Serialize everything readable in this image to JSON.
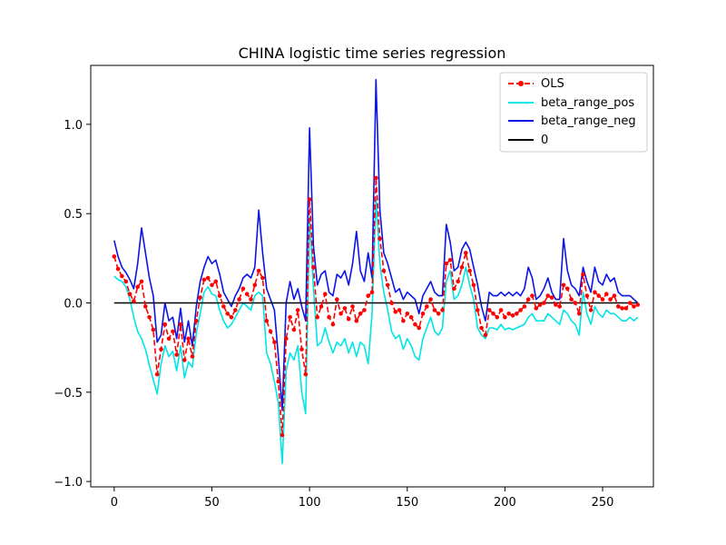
{
  "chart_data": {
    "type": "line",
    "title": "CHINA logistic time series regression",
    "xlabel": "",
    "ylabel": "",
    "xlim": [
      -12,
      276
    ],
    "ylim": [
      -1.03,
      1.33
    ],
    "x_ticks": [
      0,
      50,
      100,
      150,
      200,
      250
    ],
    "y_ticks": [
      -1.0,
      -0.5,
      0.0,
      0.5,
      1.0
    ],
    "x_tick_labels": [
      "0",
      "50",
      "100",
      "150",
      "200",
      "250"
    ],
    "y_tick_labels": [
      "−1.0",
      "−0.5",
      "0.0",
      "0.5",
      "1.0"
    ],
    "legend_position": "top-right",
    "series": [
      {
        "name": "OLS",
        "color": "#ff0000",
        "style": "dashed-markers",
        "x": [
          0,
          2,
          4,
          6,
          8,
          10,
          12,
          14,
          16,
          18,
          20,
          22,
          24,
          26,
          28,
          30,
          32,
          34,
          36,
          38,
          40,
          42,
          44,
          46,
          48,
          50,
          52,
          54,
          56,
          58,
          60,
          62,
          64,
          66,
          68,
          70,
          72,
          74,
          76,
          78,
          80,
          82,
          84,
          86,
          88,
          90,
          92,
          94,
          96,
          98,
          100,
          102,
          104,
          106,
          108,
          110,
          112,
          114,
          116,
          118,
          120,
          122,
          124,
          126,
          128,
          130,
          132,
          134,
          136,
          138,
          140,
          142,
          144,
          146,
          148,
          150,
          152,
          154,
          156,
          158,
          160,
          162,
          164,
          166,
          168,
          170,
          172,
          174,
          176,
          178,
          180,
          182,
          184,
          186,
          188,
          190,
          192,
          194,
          196,
          198,
          200,
          202,
          204,
          206,
          208,
          210,
          212,
          214,
          216,
          218,
          220,
          222,
          224,
          226,
          228,
          230,
          232,
          234,
          236,
          238,
          240,
          242,
          244,
          246,
          248,
          250,
          252,
          254,
          256,
          258,
          260,
          262,
          264,
          266,
          268
        ],
        "values": [
          0.26,
          0.19,
          0.15,
          0.12,
          0.05,
          0.01,
          0.09,
          0.12,
          -0.02,
          -0.08,
          -0.15,
          -0.4,
          -0.26,
          -0.12,
          -0.2,
          -0.16,
          -0.29,
          -0.12,
          -0.32,
          -0.2,
          -0.3,
          -0.1,
          0.03,
          0.13,
          0.14,
          0.1,
          0.12,
          0.04,
          -0.02,
          -0.06,
          -0.08,
          -0.04,
          0.02,
          0.08,
          0.05,
          0.02,
          0.1,
          0.18,
          0.14,
          -0.1,
          -0.16,
          -0.22,
          -0.44,
          -0.74,
          -0.2,
          -0.08,
          -0.15,
          -0.04,
          -0.26,
          -0.4,
          0.58,
          0.2,
          -0.08,
          -0.02,
          0.05,
          -0.08,
          -0.12,
          0.02,
          -0.06,
          -0.03,
          -0.09,
          -0.02,
          -0.1,
          -0.06,
          -0.04,
          0.04,
          0.06,
          0.7,
          0.36,
          0.18,
          0.1,
          0.0,
          -0.05,
          -0.04,
          -0.1,
          -0.06,
          -0.08,
          -0.12,
          -0.14,
          -0.06,
          -0.02,
          0.02,
          -0.04,
          -0.06,
          -0.04,
          0.22,
          0.24,
          0.08,
          0.12,
          0.2,
          0.28,
          0.18,
          0.1,
          -0.04,
          -0.14,
          -0.18,
          -0.04,
          -0.06,
          -0.08,
          -0.04,
          -0.08,
          -0.06,
          -0.07,
          -0.06,
          -0.04,
          -0.02,
          0.02,
          0.04,
          -0.03,
          -0.01,
          0.0,
          0.04,
          0.03,
          -0.01,
          -0.02,
          0.1,
          0.08,
          0.02,
          0.0,
          -0.06,
          0.16,
          0.04,
          -0.04,
          0.06,
          0.04,
          0.02,
          0.05,
          0.02,
          0.04,
          -0.02,
          -0.03,
          -0.03,
          0.0,
          -0.02,
          -0.01
        ]
      },
      {
        "name": "beta_range_pos",
        "color": "#00e6e6",
        "style": "solid",
        "x": [
          0,
          2,
          4,
          6,
          8,
          10,
          12,
          14,
          16,
          18,
          20,
          22,
          24,
          26,
          28,
          30,
          32,
          34,
          36,
          38,
          40,
          42,
          44,
          46,
          48,
          50,
          52,
          54,
          56,
          58,
          60,
          62,
          64,
          66,
          68,
          70,
          72,
          74,
          76,
          78,
          80,
          82,
          84,
          86,
          88,
          90,
          92,
          94,
          96,
          98,
          100,
          102,
          104,
          106,
          108,
          110,
          112,
          114,
          116,
          118,
          120,
          122,
          124,
          126,
          128,
          130,
          132,
          134,
          136,
          138,
          140,
          142,
          144,
          146,
          148,
          150,
          152,
          154,
          156,
          158,
          160,
          162,
          164,
          166,
          168,
          170,
          172,
          174,
          176,
          178,
          180,
          182,
          184,
          186,
          188,
          190,
          192,
          194,
          196,
          198,
          200,
          202,
          204,
          206,
          208,
          210,
          212,
          214,
          216,
          218,
          220,
          222,
          224,
          226,
          228,
          230,
          232,
          234,
          236,
          238,
          240,
          242,
          244,
          246,
          248,
          250,
          252,
          254,
          256,
          258,
          260,
          262,
          264,
          266,
          268
        ],
        "values": [
          0.15,
          0.13,
          0.12,
          0.09,
          0.02,
          -0.08,
          -0.16,
          -0.2,
          -0.26,
          -0.35,
          -0.43,
          -0.51,
          -0.34,
          -0.24,
          -0.3,
          -0.27,
          -0.38,
          -0.24,
          -0.42,
          -0.33,
          -0.36,
          -0.17,
          -0.06,
          0.06,
          0.09,
          0.05,
          0.04,
          -0.04,
          -0.1,
          -0.14,
          -0.12,
          -0.08,
          -0.04,
          0.0,
          -0.02,
          -0.04,
          0.04,
          0.06,
          0.04,
          -0.28,
          -0.34,
          -0.44,
          -0.56,
          -0.9,
          -0.38,
          -0.28,
          -0.32,
          -0.24,
          -0.5,
          -0.62,
          0.48,
          0.08,
          -0.24,
          -0.22,
          -0.14,
          -0.22,
          -0.28,
          -0.22,
          -0.24,
          -0.2,
          -0.28,
          -0.22,
          -0.3,
          -0.22,
          -0.24,
          -0.34,
          -0.06,
          0.58,
          0.22,
          0.06,
          -0.04,
          -0.16,
          -0.2,
          -0.18,
          -0.26,
          -0.2,
          -0.24,
          -0.3,
          -0.32,
          -0.2,
          -0.14,
          -0.08,
          -0.16,
          -0.18,
          -0.14,
          0.12,
          0.18,
          0.02,
          0.04,
          0.1,
          0.2,
          0.1,
          0.02,
          -0.14,
          -0.18,
          -0.2,
          -0.14,
          -0.14,
          -0.15,
          -0.12,
          -0.15,
          -0.14,
          -0.15,
          -0.14,
          -0.13,
          -0.12,
          -0.08,
          -0.06,
          -0.1,
          -0.1,
          -0.1,
          -0.06,
          -0.08,
          -0.1,
          -0.12,
          -0.04,
          -0.06,
          -0.1,
          -0.12,
          -0.18,
          0.06,
          -0.06,
          -0.12,
          -0.02,
          -0.06,
          -0.08,
          -0.04,
          -0.06,
          -0.06,
          -0.08,
          -0.1,
          -0.1,
          -0.08,
          -0.1,
          -0.08
        ]
      },
      {
        "name": "beta_range_neg",
        "color": "#0a14e6",
        "style": "solid",
        "x": [
          0,
          2,
          4,
          6,
          8,
          10,
          12,
          14,
          16,
          18,
          20,
          22,
          24,
          26,
          28,
          30,
          32,
          34,
          36,
          38,
          40,
          42,
          44,
          46,
          48,
          50,
          52,
          54,
          56,
          58,
          60,
          62,
          64,
          66,
          68,
          70,
          72,
          74,
          76,
          78,
          80,
          82,
          84,
          86,
          88,
          90,
          92,
          94,
          96,
          98,
          100,
          102,
          104,
          106,
          108,
          110,
          112,
          114,
          116,
          118,
          120,
          122,
          124,
          126,
          128,
          130,
          132,
          134,
          136,
          138,
          140,
          142,
          144,
          146,
          148,
          150,
          152,
          154,
          156,
          158,
          160,
          162,
          164,
          166,
          168,
          170,
          172,
          174,
          176,
          178,
          180,
          182,
          184,
          186,
          188,
          190,
          192,
          194,
          196,
          198,
          200,
          202,
          204,
          206,
          208,
          210,
          212,
          214,
          216,
          218,
          220,
          222,
          224,
          226,
          228,
          230,
          232,
          234,
          236,
          238,
          240,
          242,
          244,
          246,
          248,
          250,
          252,
          254,
          256,
          258,
          260,
          262,
          264,
          266,
          268
        ],
        "values": [
          0.35,
          0.26,
          0.2,
          0.17,
          0.13,
          0.08,
          0.22,
          0.42,
          0.28,
          0.14,
          0.04,
          -0.22,
          -0.18,
          0.0,
          -0.1,
          -0.08,
          -0.2,
          -0.03,
          -0.22,
          -0.1,
          -0.24,
          -0.02,
          0.12,
          0.2,
          0.26,
          0.22,
          0.24,
          0.16,
          0.06,
          0.02,
          -0.02,
          0.04,
          0.08,
          0.14,
          0.16,
          0.14,
          0.2,
          0.52,
          0.28,
          0.08,
          0.02,
          -0.04,
          -0.3,
          -0.6,
          0.0,
          0.12,
          0.02,
          0.08,
          -0.02,
          -0.1,
          0.98,
          0.32,
          0.1,
          0.16,
          0.18,
          0.06,
          0.04,
          0.16,
          0.14,
          0.18,
          0.1,
          0.22,
          0.4,
          0.18,
          0.12,
          0.28,
          0.14,
          1.25,
          0.52,
          0.28,
          0.22,
          0.14,
          0.06,
          0.08,
          0.02,
          0.06,
          0.04,
          0.02,
          -0.06,
          0.04,
          0.08,
          0.12,
          0.06,
          0.04,
          0.04,
          0.44,
          0.34,
          0.18,
          0.2,
          0.3,
          0.34,
          0.3,
          0.2,
          0.1,
          -0.02,
          -0.1,
          0.06,
          0.04,
          0.04,
          0.06,
          0.04,
          0.06,
          0.04,
          0.06,
          0.04,
          0.08,
          0.2,
          0.14,
          0.02,
          0.04,
          0.08,
          0.14,
          0.06,
          0.02,
          0.02,
          0.36,
          0.18,
          0.1,
          0.08,
          0.04,
          0.2,
          0.12,
          0.06,
          0.2,
          0.12,
          0.1,
          0.16,
          0.12,
          0.14,
          0.06,
          0.04,
          0.04,
          0.04,
          0.02,
          0.0
        ]
      },
      {
        "name": "0",
        "color": "#000000",
        "style": "solid",
        "x": [
          0,
          268
        ],
        "values": [
          0,
          0
        ]
      }
    ]
  }
}
